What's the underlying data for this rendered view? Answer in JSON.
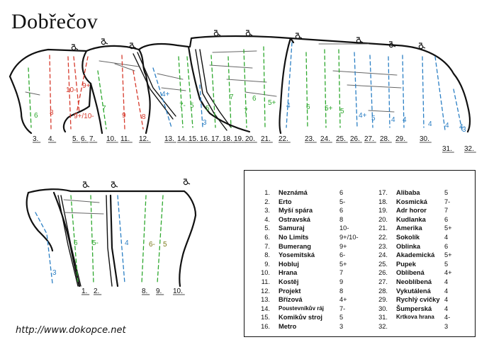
{
  "title": "Dobřečov",
  "url": "http://www.dokopce.net",
  "route_colors": {
    "easy": "#2ea82e",
    "medium": "#2b7fc4",
    "hard": "#d63a2c",
    "other": "#7a7a1a"
  },
  "upper_wall": {
    "route_numbers": [
      "3.",
      "4.",
      "5.",
      "6.",
      "7.",
      "10.",
      "11.",
      "12.",
      "13.",
      "14.",
      "15.",
      "16.",
      "17.",
      "18.",
      "19.",
      "20.",
      "21.",
      "22.",
      "23.",
      "24.",
      "25.",
      "26.",
      "27.",
      "28.",
      "29.",
      "30.",
      "31.",
      "32."
    ],
    "grade_marks": [
      {
        "text": "6",
        "color": "easy"
      },
      {
        "text": "8",
        "color": "hard"
      },
      {
        "text": "10-",
        "color": "hard"
      },
      {
        "text": "9+",
        "color": "hard"
      },
      {
        "text": "9+/10-",
        "color": "hard"
      },
      {
        "text": "7",
        "color": "easy"
      },
      {
        "text": "9",
        "color": "hard"
      },
      {
        "text": "8",
        "color": "hard"
      },
      {
        "text": "4+",
        "color": "medium"
      },
      {
        "text": "7-",
        "color": "easy"
      },
      {
        "text": "5",
        "color": "easy"
      },
      {
        "text": "5",
        "color": "easy"
      },
      {
        "text": "3",
        "color": "medium"
      },
      {
        "text": "7",
        "color": "easy"
      },
      {
        "text": "6",
        "color": "easy"
      },
      {
        "text": "7",
        "color": "easy"
      },
      {
        "text": "5+",
        "color": "easy"
      },
      {
        "text": "4",
        "color": "medium"
      },
      {
        "text": "6",
        "color": "easy"
      },
      {
        "text": "5+",
        "color": "easy"
      },
      {
        "text": "5",
        "color": "easy"
      },
      {
        "text": "4+",
        "color": "medium"
      },
      {
        "text": "5",
        "color": "medium"
      },
      {
        "text": "4",
        "color": "medium"
      },
      {
        "text": "4",
        "color": "medium"
      },
      {
        "text": "4",
        "color": "medium"
      },
      {
        "text": "4",
        "color": "medium"
      },
      {
        "text": "4-",
        "color": "medium"
      },
      {
        "text": "3",
        "color": "medium"
      }
    ]
  },
  "lower_wall": {
    "route_numbers": [
      "1.",
      "2.",
      "8.",
      "9.",
      "10."
    ],
    "grade_marks": [
      {
        "text": "6",
        "color": "easy"
      },
      {
        "text": "5-",
        "color": "easy"
      },
      {
        "text": "4",
        "color": "medium"
      },
      {
        "text": "3",
        "color": "medium"
      },
      {
        "text": "6-",
        "color": "other"
      },
      {
        "text": "5",
        "color": "other"
      }
    ]
  },
  "legend": {
    "routes": [
      {
        "num": "1.",
        "name": "Neznámá",
        "grade": "6"
      },
      {
        "num": "2.",
        "name": "Erto",
        "grade": "5-"
      },
      {
        "num": "3.",
        "name": "Myší spára",
        "grade": "6"
      },
      {
        "num": "4.",
        "name": "Ostravská",
        "grade": "8"
      },
      {
        "num": "5.",
        "name": "Samuraj",
        "grade": "10-"
      },
      {
        "num": "6.",
        "name": "No Limits",
        "grade": "9+/10-"
      },
      {
        "num": "7.",
        "name": "Bumerang",
        "grade": "9+"
      },
      {
        "num": "8.",
        "name": "Yosemitská",
        "grade": "6-"
      },
      {
        "num": "9.",
        "name": "Hobluj",
        "grade": "5+"
      },
      {
        "num": "10.",
        "name": "Hrana",
        "grade": "7"
      },
      {
        "num": "11.",
        "name": "Kostěj",
        "grade": "9"
      },
      {
        "num": "12.",
        "name": "Projekt",
        "grade": "8"
      },
      {
        "num": "13.",
        "name": "Břízová",
        "grade": "4+"
      },
      {
        "num": "14.",
        "name": "Poustevníkův ráj",
        "grade": "7-"
      },
      {
        "num": "15.",
        "name": "Komikův stroj",
        "grade": "5"
      },
      {
        "num": "16.",
        "name": "Metro",
        "grade": "3"
      },
      {
        "num": "17.",
        "name": "Alibaba",
        "grade": "5"
      },
      {
        "num": "18.",
        "name": "Kosmická",
        "grade": "7-"
      },
      {
        "num": "19.",
        "name": "Adr horor",
        "grade": "7"
      },
      {
        "num": "20.",
        "name": "Kudlanka",
        "grade": "6"
      },
      {
        "num": "21.",
        "name": "Amerika",
        "grade": "5+"
      },
      {
        "num": "22.",
        "name": "Sokolík",
        "grade": "4"
      },
      {
        "num": "23.",
        "name": "Oblinka",
        "grade": "6"
      },
      {
        "num": "24.",
        "name": "Akademická",
        "grade": "5+"
      },
      {
        "num": "25.",
        "name": "Pupek",
        "grade": "5"
      },
      {
        "num": "26.",
        "name": "Oblíbená",
        "grade": "4+"
      },
      {
        "num": "27.",
        "name": "Neoblíbená",
        "grade": "4"
      },
      {
        "num": "28.",
        "name": "Vykutálená",
        "grade": "4"
      },
      {
        "num": "29.",
        "name": "Rychlý cvičky",
        "grade": "4"
      },
      {
        "num": "30.",
        "name": "Šumperská",
        "grade": "4"
      },
      {
        "num": "31.",
        "name": "Krtkova hrana",
        "grade": "4-"
      },
      {
        "num": "32.",
        "name": "",
        "grade": "3"
      }
    ]
  }
}
